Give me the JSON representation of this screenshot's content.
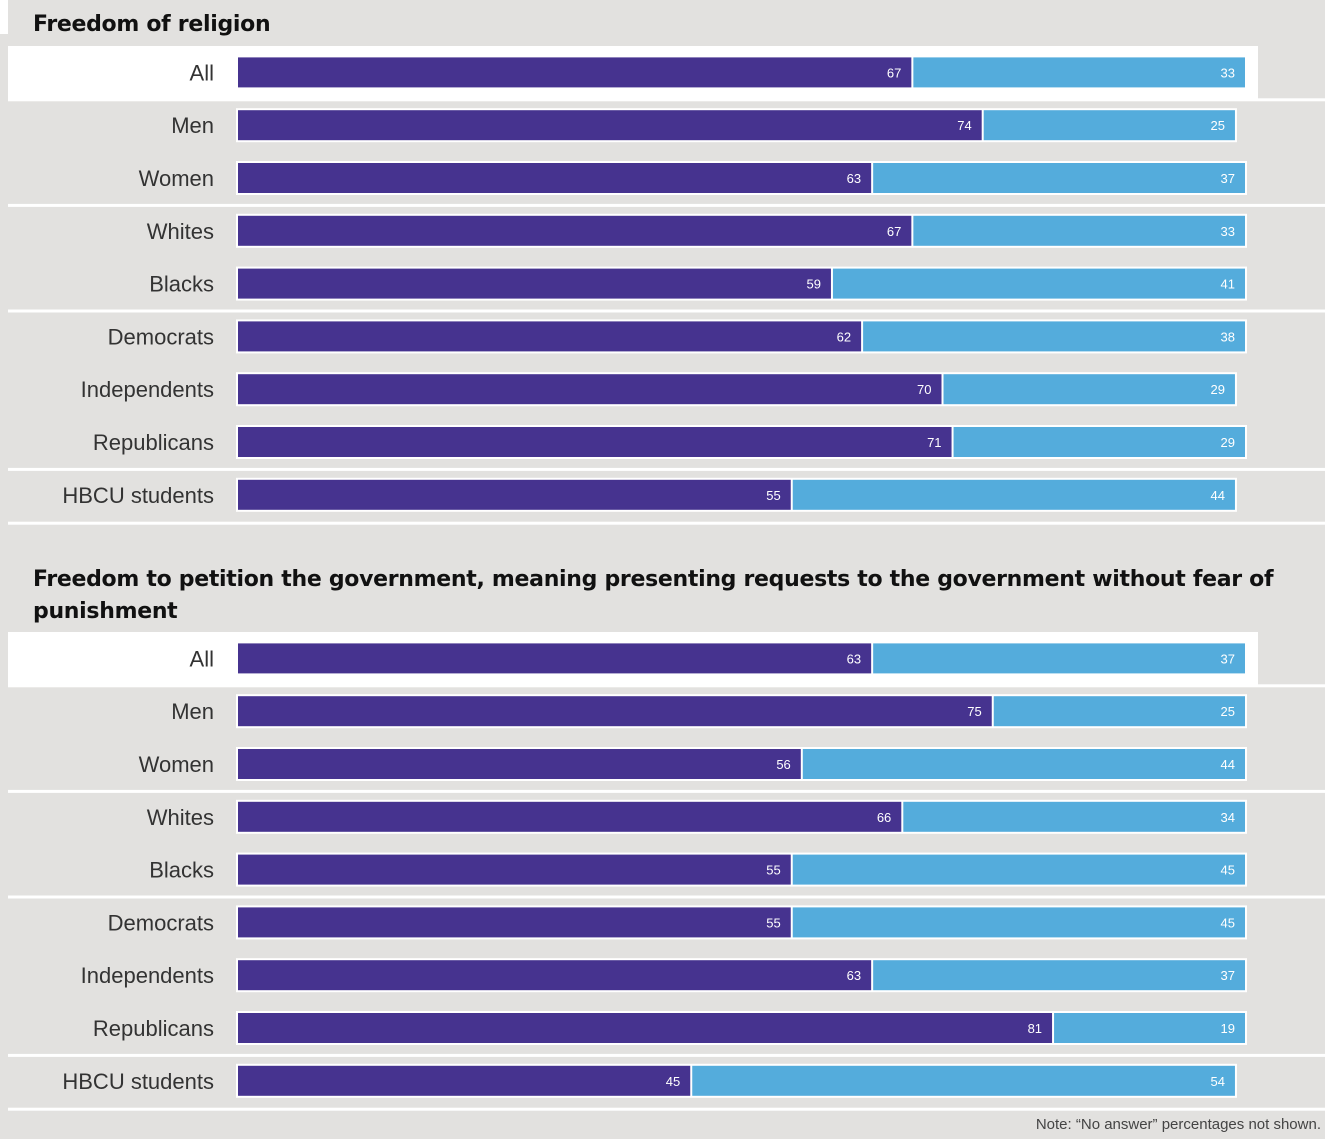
{
  "legend": {
    "colors": {
      "left": "#46338f",
      "right": "#54acdc"
    }
  },
  "chart_data": [
    {
      "type": "bar",
      "stacked": true,
      "orientation": "horizontal",
      "title": "Freedom of religion",
      "categories": [
        "All",
        "Men",
        "Women",
        "Whites",
        "Blacks",
        "Democrats",
        "Independents",
        "Republicans",
        "HBCU students"
      ],
      "series": [
        {
          "values": [
            67,
            74,
            63,
            67,
            59,
            62,
            70,
            71,
            55
          ]
        },
        {
          "values": [
            33,
            25,
            37,
            33,
            41,
            38,
            29,
            29,
            44
          ]
        }
      ],
      "xlim": [
        0,
        100
      ]
    },
    {
      "type": "bar",
      "stacked": true,
      "orientation": "horizontal",
      "title": "Freedom to petition the government, meaning presenting requests to the government without fear of punishment",
      "categories": [
        "All",
        "Men",
        "Women",
        "Whites",
        "Blacks",
        "Democrats",
        "Independents",
        "Republicans",
        "HBCU students"
      ],
      "series": [
        {
          "values": [
            63,
            75,
            56,
            66,
            55,
            55,
            63,
            81,
            45
          ]
        },
        {
          "values": [
            37,
            25,
            44,
            34,
            45,
            45,
            37,
            19,
            54
          ]
        }
      ],
      "xlim": [
        0,
        100
      ]
    }
  ],
  "note": "Note: “No answer” percentages not shown."
}
